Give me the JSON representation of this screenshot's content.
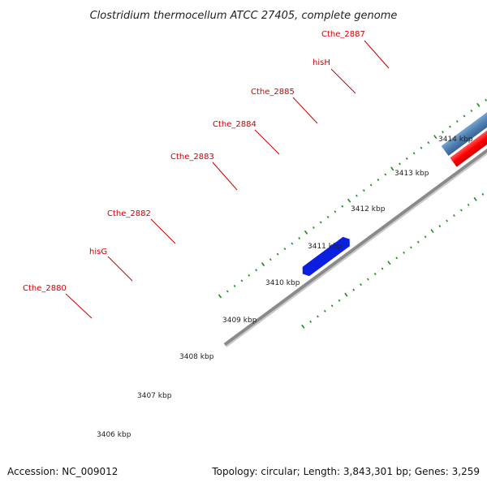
{
  "title": "Clostridium thermocellum ATCC 27405, complete genome",
  "accession": "Accession: NC_009012",
  "topology": "Topology: circular; Length: 3,843,301 bp; Genes: 3,259",
  "gene_labels": [
    "Cthe_2880",
    "hisG",
    "Cthe_2882",
    "Cthe_2883",
    "Cthe_2884",
    "Cthe_2885",
    "hisH",
    "Cthe_2887"
  ],
  "kbp_labels": [
    "3406 kbp",
    "3407 kbp",
    "3408 kbp",
    "3409 kbp",
    "3410 kbp",
    "3411 kbp",
    "3412 kbp",
    "3413 kbp",
    "3414 kbp"
  ],
  "colors": {
    "backbone": "#8a8a8a",
    "cds_blue": "#4f7fb3",
    "cds_highlight": "#18b8f0",
    "cds_red": "#ff0000",
    "gene_dark_blue": "#0a1fe0",
    "gene_orange": "#f5a623",
    "tick_green": "#1a8a1a",
    "label_red": "#cc0000"
  }
}
